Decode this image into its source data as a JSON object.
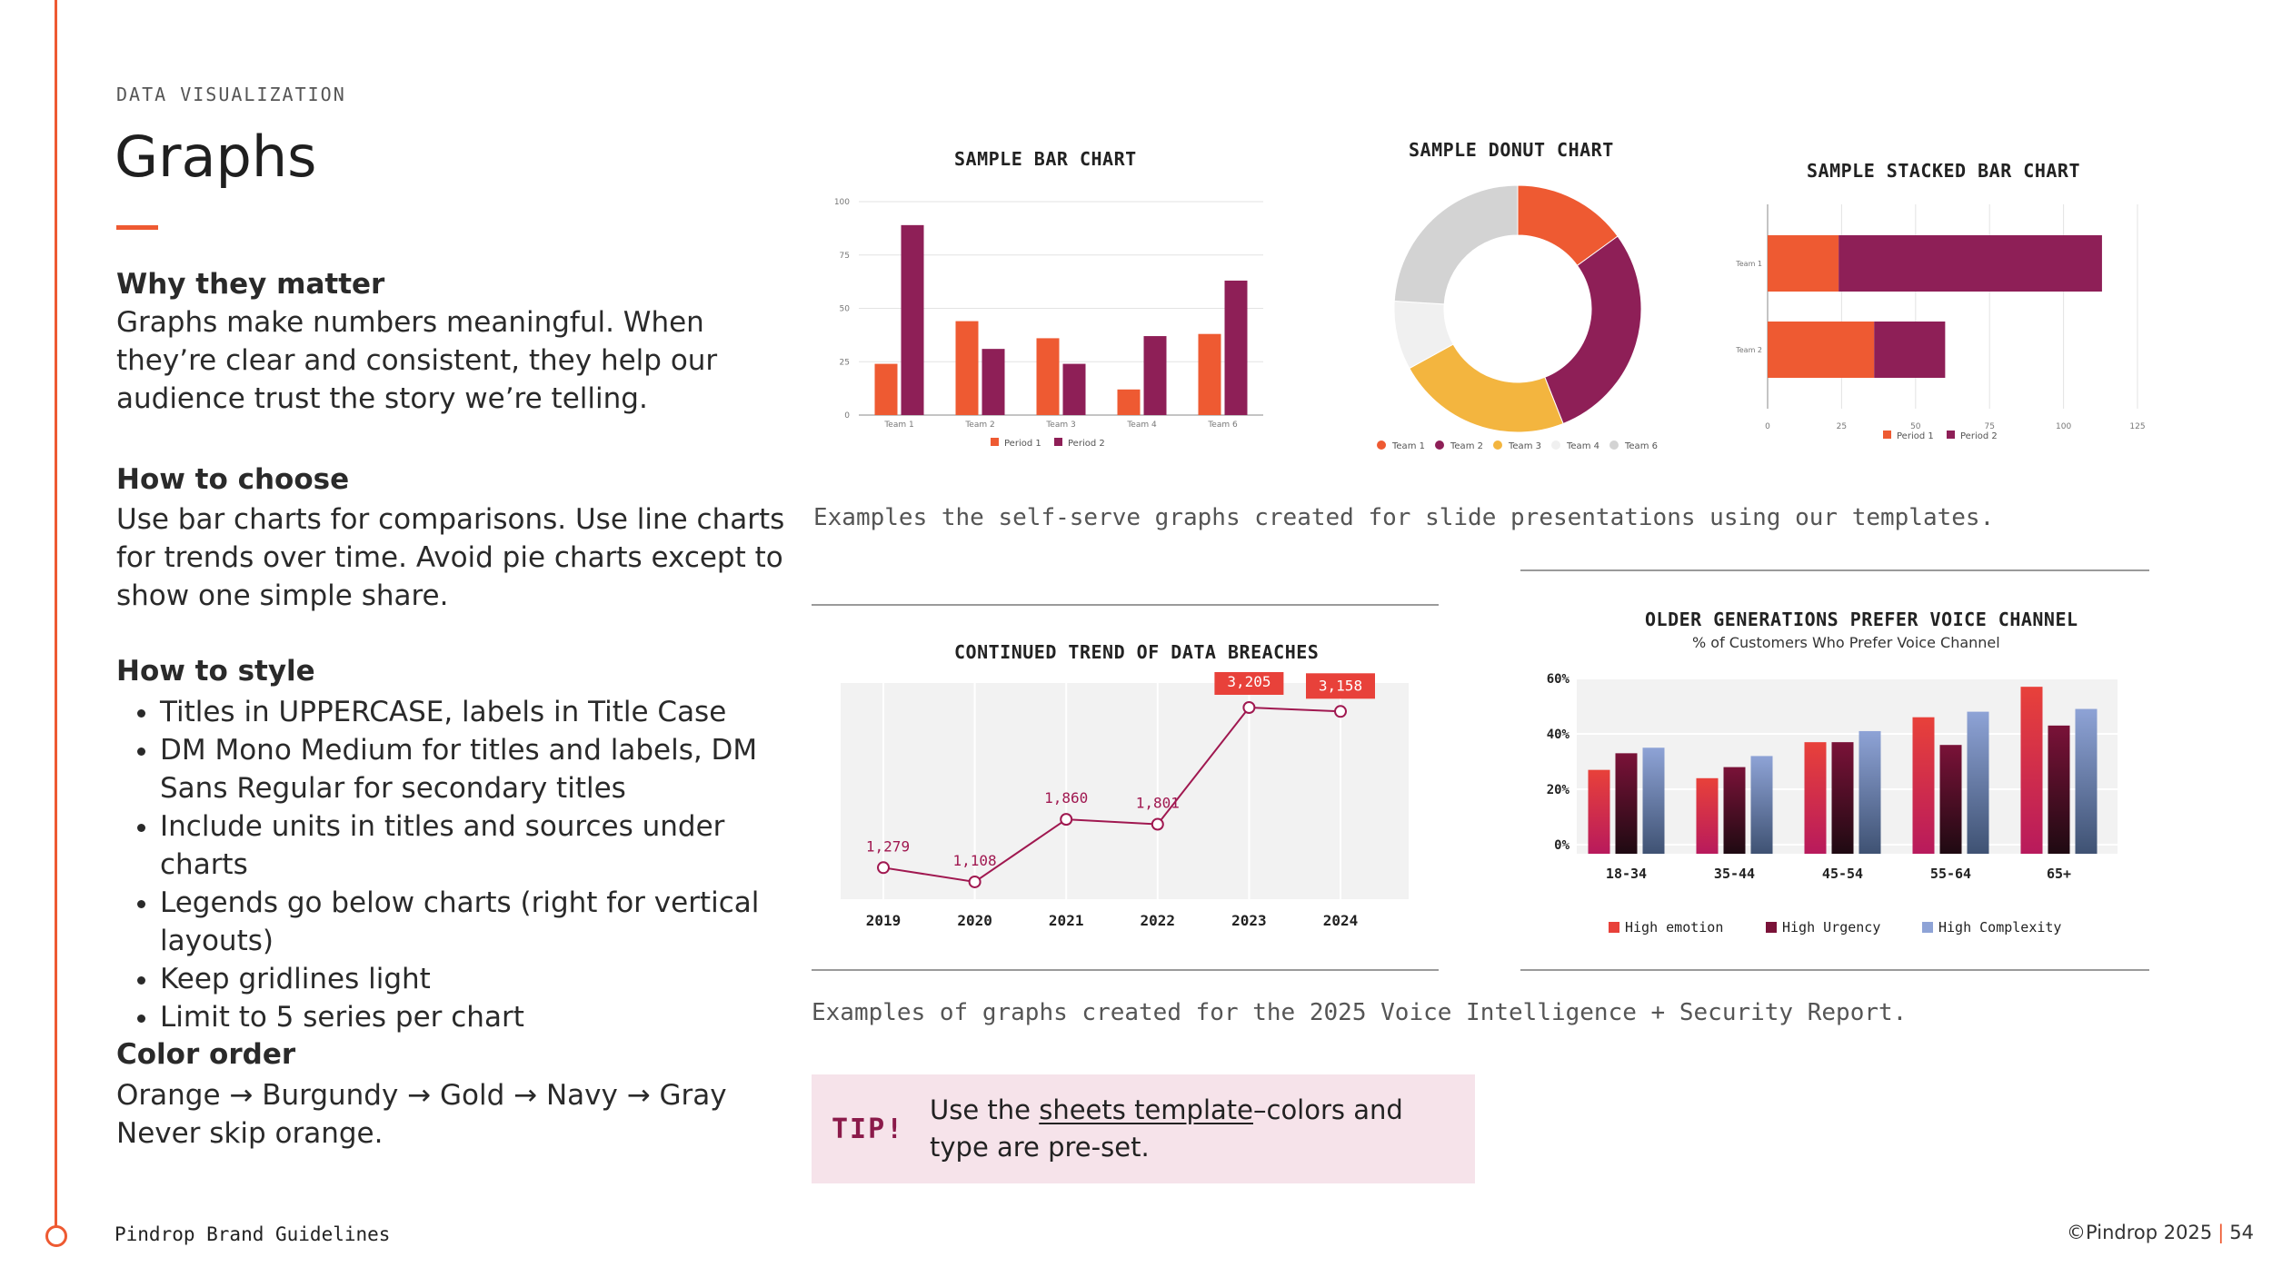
{
  "eyebrow": "DATA VISUALIZATION",
  "title": "Graphs",
  "sections": {
    "why": {
      "heading": "Why they matter",
      "body": "Graphs make numbers meaningful. When they’re clear and consistent, they help our audience trust the story we’re telling."
    },
    "choose": {
      "heading": "How to choose",
      "body": "Use bar charts for comparisons. Use line charts for trends over time. Avoid pie charts except to show one simple share."
    },
    "style": {
      "heading": "How to style",
      "bullets": [
        "Titles in UPPERCASE, labels in Title Case",
        "DM Mono Medium for titles and labels, DM Sans Regular for secondary titles",
        "Include units in titles and sources under charts",
        "Legends go below charts (right for vertical layouts)",
        "Keep gridlines light",
        "Limit to 5 series per chart"
      ]
    },
    "color": {
      "heading": "Color order",
      "line1": "Orange → Burgundy → Gold → Navy → Gray",
      "line2": "Never skip orange."
    }
  },
  "captions": {
    "top": "Examples the self-serve graphs created for slide presentations using our templates.",
    "bottom": "Examples of graphs created for the 2025 Voice Intelligence + Security Report."
  },
  "tip": {
    "label": "TIP!",
    "before": "Use the ",
    "link": "sheets template",
    "after": "–colors and type are pre-set."
  },
  "footer": {
    "left": "Pindrop Brand Guidelines",
    "copyright": "©Pindrop 2025",
    "separator": "|",
    "page": "54"
  },
  "colors": {
    "orange": "#ee5a32",
    "burgundy": "#8e1f57",
    "gold": "#f3b53f",
    "light_gray": "#f0f0f0",
    "gray": "#d3d3d3"
  },
  "chart_data": [
    {
      "id": "bar",
      "type": "bar",
      "title": "SAMPLE BAR CHART",
      "categories": [
        "Team 1",
        "Team 2",
        "Team 3",
        "Team 4",
        "Team 6"
      ],
      "series": [
        {
          "name": "Period 1",
          "color": "#ee5a32",
          "values": [
            24,
            44,
            36,
            12,
            38
          ]
        },
        {
          "name": "Period 2",
          "color": "#8e1f57",
          "values": [
            89,
            31,
            24,
            37,
            63
          ]
        }
      ],
      "ylim": [
        0,
        100
      ],
      "yticks": [
        "0",
        "25",
        "50",
        "75",
        "100"
      ],
      "legend": "bottom",
      "grid": true
    },
    {
      "id": "donut",
      "type": "pie",
      "title": "SAMPLE DONUT CHART",
      "labels": [
        "Team 1",
        "Team 2",
        "Team 3",
        "Team 4",
        "Team 6"
      ],
      "values": [
        15,
        29,
        23,
        9,
        24
      ],
      "colors": [
        "#ee5a32",
        "#8e1f57",
        "#f3b53f",
        "#f0f0f0",
        "#d3d3d3"
      ],
      "legend": "bottom"
    },
    {
      "id": "stacked",
      "type": "bar",
      "title": "SAMPLE STACKED BAR CHART",
      "orientation": "horizontal",
      "stacked": true,
      "categories": [
        "Team 1",
        "Team 2"
      ],
      "series": [
        {
          "name": "Period 1",
          "color": "#ee5a32",
          "values": [
            24,
            36
          ]
        },
        {
          "name": "Period 2",
          "color": "#8e1f57",
          "values": [
            89,
            24
          ]
        }
      ],
      "xlim": [
        0,
        125
      ],
      "xticks": [
        "0",
        "25",
        "50",
        "75",
        "100",
        "125"
      ],
      "legend": "bottom",
      "grid": true
    },
    {
      "id": "line",
      "type": "line",
      "title": "CONTINUED TREND OF DATA BREACHES",
      "x": [
        "2019",
        "2020",
        "2021",
        "2022",
        "2023",
        "2024"
      ],
      "values": [
        1279,
        1108,
        1860,
        1801,
        3205,
        3158
      ],
      "labels": [
        "1,279",
        "1,108",
        "1,860",
        "1,801",
        "3,205",
        "3,158"
      ],
      "highlight": [
        4,
        5
      ],
      "ylim": [
        900,
        3500
      ],
      "color": "#a01850",
      "grid": true
    },
    {
      "id": "voice",
      "type": "bar",
      "title": "OLDER GENERATIONS PREFER VOICE CHANNEL",
      "subtitle": "% of Customers Who Prefer Voice Channel",
      "categories": [
        "18-34",
        "35-44",
        "45-54",
        "55-64",
        "65+"
      ],
      "series": [
        {
          "name": "High emotion",
          "color": "#e8413a",
          "values": [
            27,
            24,
            37,
            46,
            57
          ]
        },
        {
          "name": "High Urgency",
          "color": "#7a1238",
          "values": [
            33,
            28,
            37,
            36,
            43
          ]
        },
        {
          "name": "High Complexity",
          "color": "#8ea3d6",
          "values": [
            35,
            32,
            41,
            48,
            49
          ]
        }
      ],
      "ylim": [
        0,
        60
      ],
      "yticks": [
        "0%",
        "20%",
        "40%",
        "60%"
      ],
      "legend": "bottom",
      "grid": true
    }
  ]
}
